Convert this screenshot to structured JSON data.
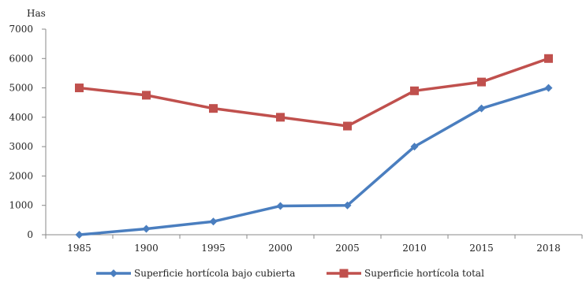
{
  "chart_data": {
    "type": "line",
    "ylabel": "Has",
    "categories": [
      "1985",
      "1900",
      "1995",
      "2000",
      "2005",
      "2010",
      "2015",
      "2018"
    ],
    "yticks": [
      "0",
      "1000",
      "2000",
      "3000",
      "4000",
      "5000",
      "6000",
      "7000"
    ],
    "ylim": [
      0,
      7000
    ],
    "grid": false,
    "legend": "bottom",
    "series": [
      {
        "name": "Superficie hortícola bajo cubierta",
        "values": [
          0,
          200,
          450,
          980,
          1000,
          3000,
          4300,
          5000
        ],
        "color": "#4a7ebf",
        "marker": "diamond"
      },
      {
        "name": "Superficie hortícola total",
        "values": [
          5000,
          4750,
          4300,
          4000,
          3700,
          4900,
          5200,
          6000
        ],
        "color": "#c0504d",
        "marker": "square"
      }
    ]
  }
}
